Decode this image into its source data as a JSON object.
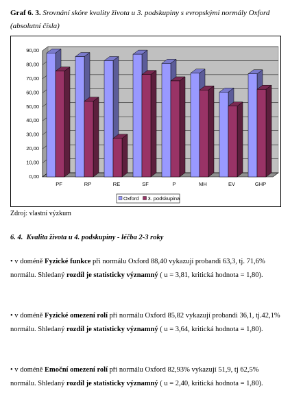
{
  "header": {
    "label": "Graf 6. 3.",
    "title": "Srovnání skóre kvality života u 3. podskupiny s evropskými normály Oxford (absolutní čísla)"
  },
  "chart_data": {
    "type": "bar",
    "categories": [
      "PF",
      "RP",
      "RE",
      "SF",
      "P",
      "MH",
      "EV",
      "GHP"
    ],
    "series": [
      {
        "name": "Oxford",
        "color": "#9999ff",
        "values": [
          88.4,
          85.82,
          82.93,
          87.5,
          81,
          74,
          60.5,
          73.5
        ]
      },
      {
        "name": "3. podskupina",
        "color": "#993366",
        "values": [
          75.5,
          54,
          27.5,
          73,
          68.5,
          62,
          50.5,
          62.5
        ]
      }
    ],
    "ylim": [
      0,
      90
    ],
    "yticks": [
      {
        "value": 0,
        "label": "0,00"
      },
      {
        "value": 10,
        "label": "10,00"
      },
      {
        "value": 20,
        "label": "20,00"
      },
      {
        "value": 30,
        "label": "30,00"
      },
      {
        "value": 40,
        "label": "40,00"
      },
      {
        "value": 50,
        "label": "50,00"
      },
      {
        "value": 60,
        "label": "60,00"
      },
      {
        "value": 70,
        "label": "70,00"
      },
      {
        "value": 80,
        "label": "80,00"
      },
      {
        "value": 90,
        "label": "90,00"
      }
    ],
    "grid": true,
    "legend": "bottom"
  },
  "source": "Zdroj: vlastní výzkum",
  "section": {
    "number": "6. 4.",
    "title": "Kvalita života u 4. podskupiny - léčba 2-3 roky"
  },
  "paragraphs": [
    [
      "• v  doméně ",
      "Fyzické funkce",
      " při normálu Oxford 88,40  vykazují probandi 63,3, tj. 71,6% normálu. Shledaný ",
      "rozdíl je statisticky významný",
      " ( u = 3,81, kritická hodnota = 1,80)."
    ],
    [
      "• v  doméně ",
      "Fyzické omezení rolí",
      " při normálu Oxford 85,82  vykazují probandi 36,1, tj.42,1% normálu. Shledaný ",
      "rozdíl je statisticky významný",
      " ( u = 3,64, kritická hodnota = 1,80)."
    ],
    [
      "• v  doméně ",
      "Emoční omezení rolí",
      " při normálu Oxford 82,93% vykazují 51,9, tj 62,5% normálu. Shledaný ",
      "rozdíl je statisticky významný",
      " ( u = 2,40, kritická hodnota = 1,80)."
    ]
  ]
}
